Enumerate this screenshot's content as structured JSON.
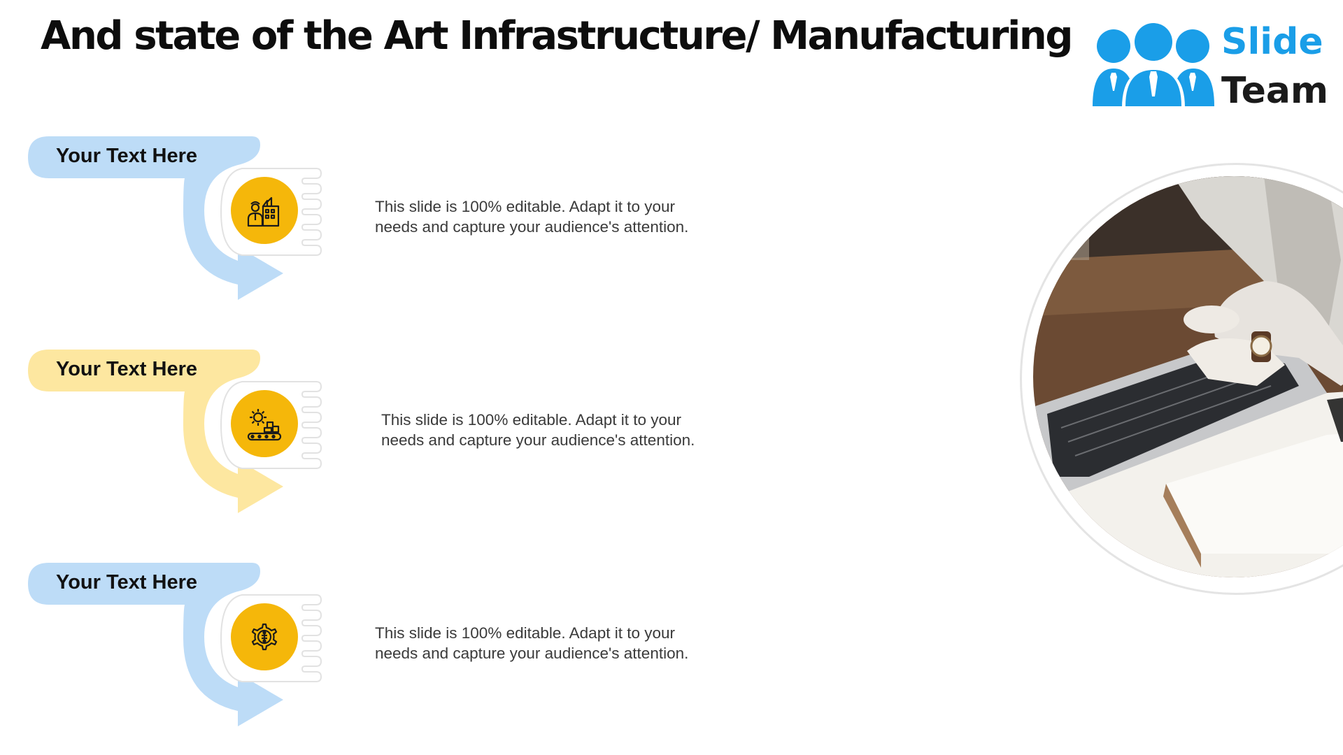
{
  "title": "And state of the Art Infrastructure/ Manufacturing",
  "logo": {
    "word_top": "Slide",
    "word_bottom": "Team",
    "accent": "#1a9ee8"
  },
  "items": [
    {
      "label": "Your Text Here",
      "description_line1": "This slide is 100% editable. Adapt it to your",
      "description_line2": "needs and capture your audience's attention.",
      "color": "#bddcf7",
      "icon": "factory-worker-icon"
    },
    {
      "label": "Your Text Here",
      "description_line1": "This slide is 100% editable. Adapt it to your",
      "description_line2": "needs and capture your audience's attention.",
      "color": "#fde7a0",
      "icon": "gear-conveyor-icon"
    },
    {
      "label": "Your Text Here",
      "description_line1": "This slide is 100% editable. Adapt it to your",
      "description_line2": "needs and capture your audience's attention.",
      "color": "#bddcf7",
      "icon": "gear-circuit-icon"
    }
  ],
  "icon_badge_color": "#f5b70a",
  "photo": "person-typing-on-laptop-photo"
}
